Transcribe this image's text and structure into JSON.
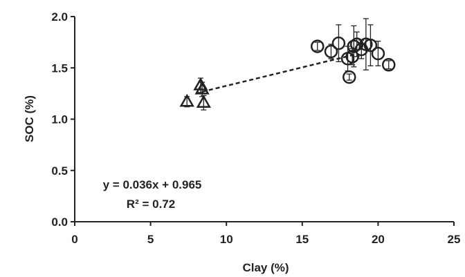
{
  "chart_data": {
    "type": "scatter",
    "title": "",
    "xlabel": "Clay (%)",
    "ylabel": "SOC (%)",
    "xlim": [
      0,
      25
    ],
    "ylim": [
      0.0,
      2.0
    ],
    "x_ticks": [
      "0",
      "5",
      "10",
      "15",
      "20",
      "25"
    ],
    "y_ticks": [
      "0.0",
      "0.5",
      "1.0",
      "1.5",
      "2.0"
    ],
    "grid": false,
    "legend": "none",
    "series": [
      {
        "marker": "triangle",
        "points": [
          {
            "x": 7.4,
            "y": 1.17,
            "err": 0.05
          },
          {
            "x": 8.3,
            "y": 1.33,
            "err": 0.07
          },
          {
            "x": 8.4,
            "y": 1.29,
            "err": 0.07
          },
          {
            "x": 8.5,
            "y": 1.16,
            "err": 0.07
          }
        ]
      },
      {
        "marker": "circle",
        "points": [
          {
            "x": 16.0,
            "y": 1.71,
            "err": 0.04
          },
          {
            "x": 16.9,
            "y": 1.66,
            "err": 0.07
          },
          {
            "x": 17.4,
            "y": 1.74,
            "err": 0.18
          },
          {
            "x": 18.0,
            "y": 1.59,
            "err": 0.12
          },
          {
            "x": 18.1,
            "y": 1.41,
            "err": 0.03
          },
          {
            "x": 18.3,
            "y": 1.61,
            "err": 0.08
          },
          {
            "x": 18.4,
            "y": 1.71,
            "err": 0.2
          },
          {
            "x": 18.6,
            "y": 1.73,
            "err": 0.12
          },
          {
            "x": 18.9,
            "y": 1.68,
            "err": 0.09
          },
          {
            "x": 19.2,
            "y": 1.73,
            "err": 0.25
          },
          {
            "x": 19.5,
            "y": 1.72,
            "err": 0.2
          },
          {
            "x": 20.0,
            "y": 1.64,
            "err": 0.12
          },
          {
            "x": 20.7,
            "y": 1.53,
            "err": 0.04
          }
        ]
      }
    ],
    "trendline": {
      "slope": 0.036,
      "intercept": 0.965,
      "x_range": [
        8.4,
        18.4
      ],
      "style": "dashed"
    },
    "annotations": {
      "equation": "y = 0.036x + 0.965",
      "r2": "R² = 0.72"
    }
  }
}
